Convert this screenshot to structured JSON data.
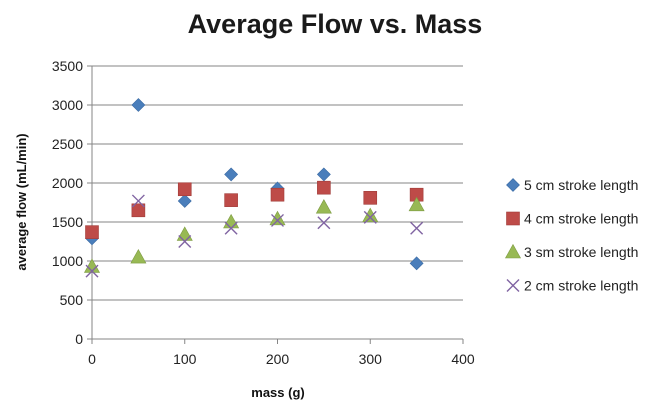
{
  "chart_data": {
    "type": "scatter",
    "title": "Average Flow vs. Mass",
    "xlabel": "mass (g)",
    "ylabel": "average flow (mL/min)",
    "xlim": [
      0,
      400
    ],
    "ylim": [
      0,
      3500
    ],
    "x_ticks": [
      0,
      100,
      200,
      300,
      400
    ],
    "y_ticks": [
      0,
      500,
      1000,
      1500,
      2000,
      2500,
      3000,
      3500
    ],
    "grid": "horizontal",
    "legend_position": "right",
    "series": [
      {
        "name": "5 cm stroke length",
        "marker": "diamond",
        "color": "#4a7ebb",
        "x": [
          0,
          50,
          100,
          150,
          200,
          250,
          350
        ],
        "y": [
          1290,
          3000,
          1770,
          2110,
          1930,
          2110,
          970
        ]
      },
      {
        "name": "4 cm stroke length",
        "marker": "square",
        "color": "#be4b48",
        "x": [
          0,
          50,
          100,
          150,
          200,
          250,
          300,
          350
        ],
        "y": [
          1370,
          1650,
          1920,
          1780,
          1850,
          1940,
          1810,
          1850
        ]
      },
      {
        "name": "3 sm stroke length",
        "marker": "triangle",
        "color": "#98b954",
        "x": [
          0,
          50,
          100,
          150,
          200,
          250,
          300,
          350
        ],
        "y": [
          930,
          1050,
          1340,
          1500,
          1540,
          1690,
          1580,
          1720
        ]
      },
      {
        "name": "2 cm stroke length",
        "marker": "x",
        "color": "#8064a2",
        "x": [
          0,
          50,
          100,
          150,
          200,
          250,
          300,
          350
        ],
        "y": [
          870,
          1770,
          1250,
          1420,
          1520,
          1490,
          1560,
          1420
        ]
      }
    ]
  }
}
